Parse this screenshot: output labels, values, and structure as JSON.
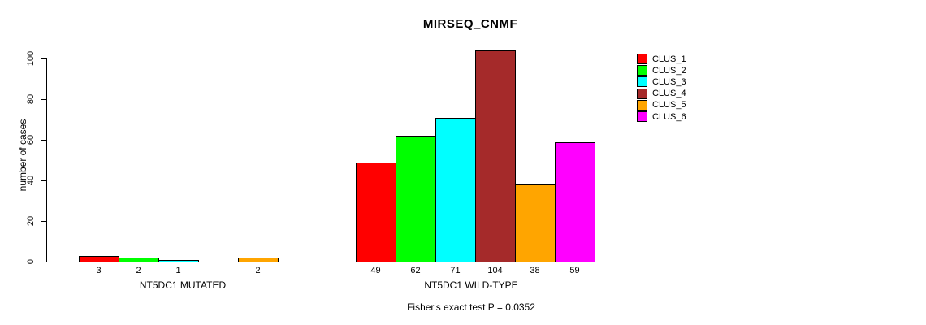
{
  "title": "MIRSEQ_CNMF",
  "annotation": "Fisher's exact test P = 0.0352",
  "y_axis": {
    "label": "number of cases",
    "ticks": [
      0,
      20,
      40,
      60,
      80,
      100
    ]
  },
  "legend": {
    "entries": [
      {
        "label": "CLUS_1",
        "color": "#ff0000"
      },
      {
        "label": "CLUS_2",
        "color": "#00ff00"
      },
      {
        "label": "CLUS_3",
        "color": "#00ffff"
      },
      {
        "label": "CLUS_4",
        "color": "#a52a2a"
      },
      {
        "label": "CLUS_5",
        "color": "#ffa500"
      },
      {
        "label": "CLUS_6",
        "color": "#ff00ff"
      }
    ]
  },
  "chart_data": {
    "type": "bar",
    "title": "MIRSEQ_CNMF",
    "xlabel": "",
    "ylabel": "number of cases",
    "ylim": [
      0,
      104
    ],
    "yticks": [
      0,
      20,
      40,
      60,
      80,
      100
    ],
    "grid": false,
    "legend_position": "right-outside",
    "series_names": [
      "CLUS_1",
      "CLUS_2",
      "CLUS_3",
      "CLUS_4",
      "CLUS_5",
      "CLUS_6"
    ],
    "series_colors": [
      "#ff0000",
      "#00ff00",
      "#00ffff",
      "#a52a2a",
      "#ffa500",
      "#ff00ff"
    ],
    "panels": [
      {
        "label": "NT5DC1 MUTATED",
        "values": [
          3,
          2,
          1,
          0,
          2,
          0
        ]
      },
      {
        "label": "NT5DC1 WILD-TYPE",
        "values": [
          49,
          62,
          71,
          104,
          38,
          59
        ]
      }
    ],
    "bar_value_labels": true,
    "annotation": "Fisher's exact test P = 0.0352"
  }
}
